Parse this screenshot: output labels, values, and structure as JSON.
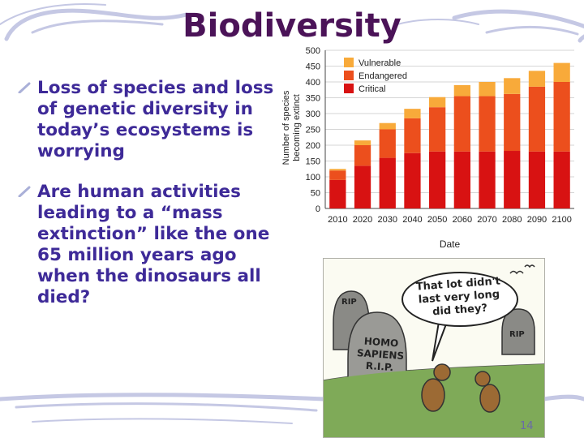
{
  "slide": {
    "title": "Biodiversity",
    "bullets": [
      "Loss of species and loss of genetic diversity in today’s ecosystems is worrying",
      "Are human activities leading to a “mass extinction” like the one 65 million years ago when the dinosaurs all died?"
    ],
    "page_number": "14"
  },
  "cartoon": {
    "speech": "That lot didn't last very long did they?",
    "tombstone_main": "HOMO SAPIENS R.I.P.",
    "tombstone_left": "RIP",
    "tombstone_right": "RIP"
  },
  "colors": {
    "title": "#4b1358",
    "bullet_text": "#3e2a98",
    "vulnerable": "#f8aa3a",
    "endangered": "#ec4f1d",
    "critical": "#d81212"
  },
  "chart_data": {
    "type": "bar",
    "stacked": true,
    "categories": [
      "2010",
      "2020",
      "2030",
      "2040",
      "2050",
      "2060",
      "2070",
      "2080",
      "2090",
      "2100"
    ],
    "series": [
      {
        "name": "Critical",
        "color": "#d81212",
        "values": [
          90,
          135,
          160,
          175,
          180,
          180,
          180,
          182,
          180,
          180
        ]
      },
      {
        "name": "Endangered",
        "color": "#ec4f1d",
        "values": [
          30,
          65,
          90,
          110,
          140,
          175,
          175,
          180,
          205,
          220
        ]
      },
      {
        "name": "Vulnerable",
        "color": "#f8aa3a",
        "values": [
          5,
          15,
          20,
          30,
          32,
          35,
          45,
          50,
          50,
          60
        ]
      }
    ],
    "xlabel": "Date",
    "ylabel": "Number of species becoming extinct",
    "ylim": [
      0,
      500
    ],
    "yticks": [
      0,
      50,
      100,
      150,
      200,
      250,
      300,
      350,
      400,
      450,
      500
    ],
    "grid": true,
    "legend": "top-left"
  }
}
